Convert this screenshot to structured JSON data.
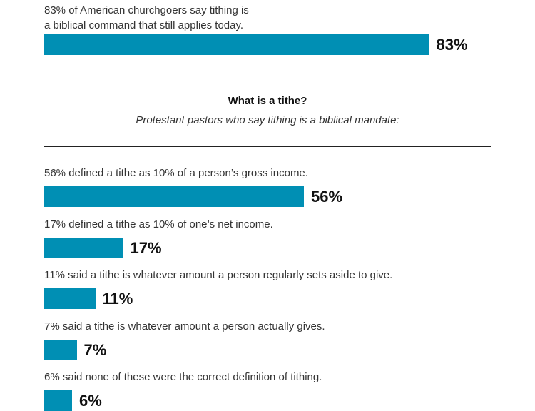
{
  "colors": {
    "bar": "#008fb4"
  },
  "chart_data": [
    {
      "type": "bar",
      "orientation": "horizontal",
      "xlim": [
        0,
        100
      ],
      "categories": [
        "83% of American churchgoers say tithing is\na biblical command that still applies today."
      ],
      "values": [
        83
      ],
      "value_labels": [
        "83%"
      ]
    },
    {
      "type": "bar",
      "orientation": "horizontal",
      "title": "What is a tithe?",
      "subtitle": "Protestant pastors who say tithing is a biblical mandate:",
      "xlim": [
        0,
        100
      ],
      "categories": [
        "56% defined a tithe as 10% of a person’s gross income.",
        "17% defined a tithe as 10% of one’s net income.",
        "11% said a tithe is whatever amount a person regularly sets aside to give.",
        "7% said a tithe is whatever amount a person actually gives.",
        "6% said none of these were the correct definition of tithing."
      ],
      "values": [
        56,
        17,
        11,
        7,
        6
      ],
      "value_labels": [
        "56%",
        "17%",
        "11%",
        "7%",
        "6%"
      ]
    }
  ]
}
